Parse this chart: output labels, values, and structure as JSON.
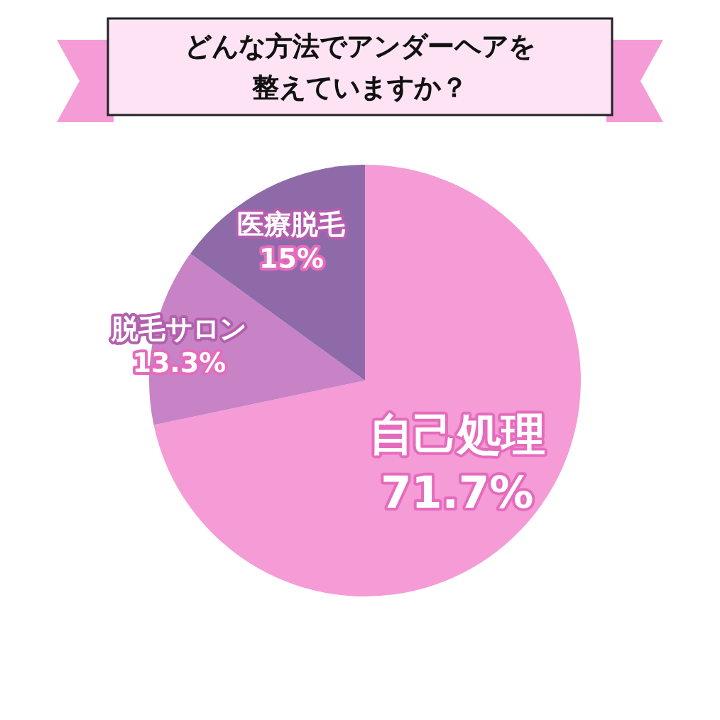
{
  "chart_data": {
    "type": "pie",
    "title": "どんな方法でアンダーヘアを整えていますか？",
    "categories": [
      "自己処理",
      "脱毛サロン",
      "医療脱毛"
    ],
    "values": [
      71.7,
      13.3,
      15
    ],
    "colors": [
      "#f59bd6",
      "#c783c6",
      "#8f6aa9"
    ],
    "value_labels": [
      "71.7%",
      "13.3%",
      "15%"
    ]
  }
}
